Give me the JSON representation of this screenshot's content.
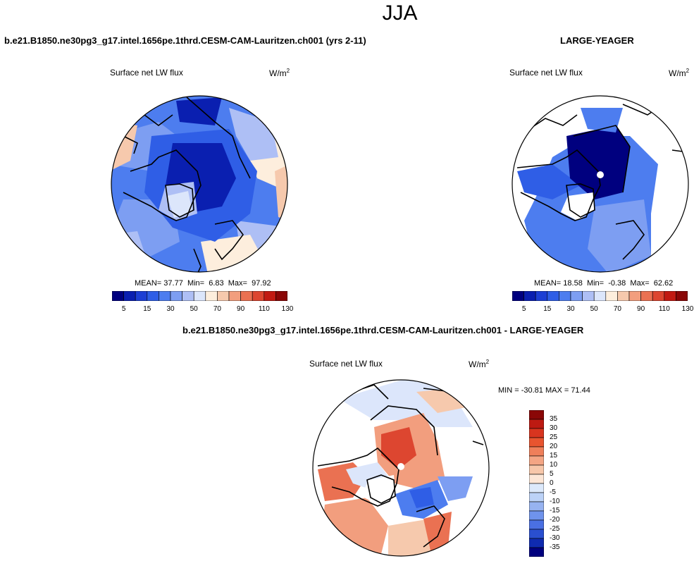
{
  "season": "JJA",
  "panels": {
    "model": {
      "case": "b.e21.B1850.ne30pg3_g17.intel.1656pe.1thrd.CESM-CAM-Lauritzen.ch001 (yrs 2-11)",
      "variable": "Surface net LW flux",
      "units": "W/m",
      "units_exp": "2",
      "stats": {
        "mean_label": "MEAN=",
        "mean": "37.77",
        "min_label": "Min=",
        "min": "6.83",
        "max_label": "Max=",
        "max": "97.92"
      }
    },
    "obs": {
      "case": "LARGE-YEAGER",
      "variable": "Surface net LW flux",
      "units": "W/m",
      "units_exp": "2",
      "stats": {
        "mean_label": "MEAN=",
        "mean": "18.58",
        "min_label": "Min=",
        "min": "-0.38",
        "max_label": "Max=",
        "max": "62.62"
      }
    },
    "diff": {
      "case": "b.e21.B1850.ne30pg3_g17.intel.1656pe.1thrd.CESM-CAM-Lauritzen.ch001 - LARGE-YEAGER",
      "variable": "Surface net LW flux",
      "units": "W/m",
      "units_exp": "2",
      "minmax": "MIN = -30.81 MAX =  71.44"
    }
  },
  "colorbar_main": {
    "colors": [
      "#00007f",
      "#0a1fb0",
      "#1d3fd4",
      "#2f5ee6",
      "#4d7def",
      "#7d9ef2",
      "#aebff5",
      "#dce6fb",
      "#fdeedd",
      "#f6c9ad",
      "#f29e7e",
      "#ea7152",
      "#dd4630",
      "#c11a12",
      "#8a0707"
    ],
    "labels": [
      "5",
      "15",
      "30",
      "50",
      "70",
      "90",
      "110",
      "130"
    ]
  },
  "colorbar_diff": {
    "colors": [
      "#8a0707",
      "#bd1a12",
      "#d8351f",
      "#e8542f",
      "#ef7f5a",
      "#f4a584",
      "#f7c7aa",
      "#fce6d6",
      "#dce9fb",
      "#bcd2f7",
      "#97b3f1",
      "#6f93ec",
      "#4a70e3",
      "#2a4fd0",
      "#0f2bb0",
      "#00007f"
    ],
    "labels": [
      "35",
      "30",
      "25",
      "20",
      "15",
      "10",
      "5",
      "0",
      "-5",
      "-10",
      "-15",
      "-20",
      "-25",
      "-30",
      "-35"
    ]
  },
  "map_colors": {
    "deep": "#0a1fb0",
    "blue": "#2f5ee6",
    "mid": "#4d7def",
    "light": "#7d9ef2",
    "pale": "#aebff5",
    "paler": "#dce6fb",
    "cream": "#fdeedd",
    "peach": "#f6c9ad",
    "salmon": "#f29e7e",
    "orange": "#ea7152",
    "red": "#dd4630",
    "dark": "#00007f"
  }
}
